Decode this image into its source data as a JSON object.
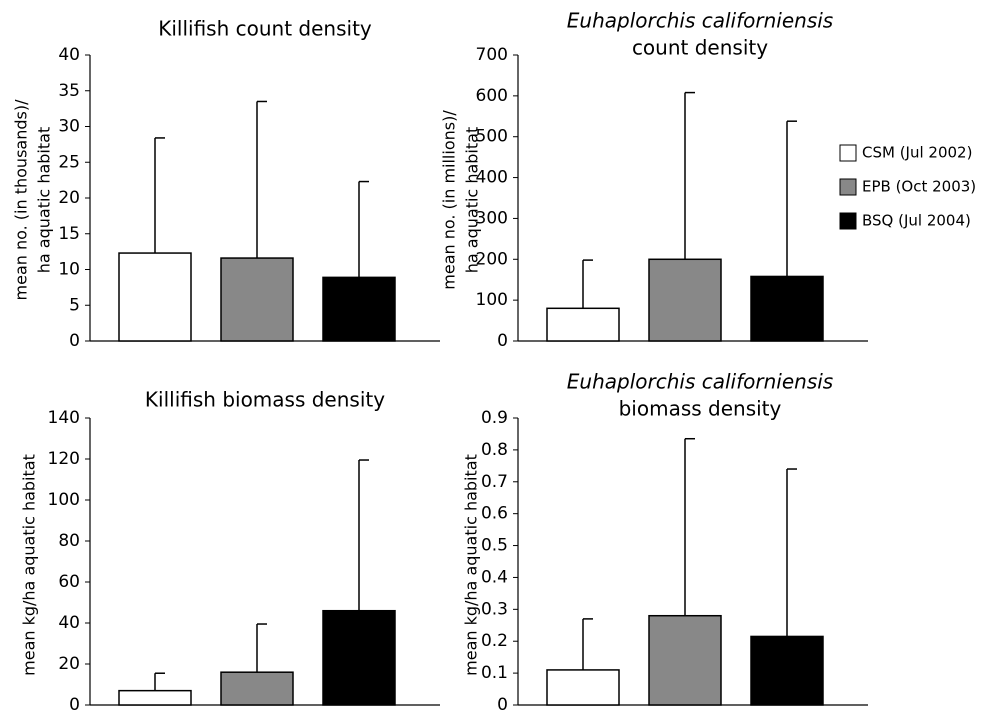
{
  "legend": [
    {
      "name": "CSM (Jul 2002)",
      "color": "#ffffff"
    },
    {
      "name": "EPB (Oct 2003)",
      "color": "#888888"
    },
    {
      "name": "BSQ (Jul 2004)",
      "color": "#000000"
    }
  ],
  "chart_data": [
    {
      "type": "bar",
      "title": [
        "Killifish count density"
      ],
      "ylabel": [
        "mean no. (in thousands)/",
        "ha aquatic habitat"
      ],
      "values": [
        12.3,
        11.6,
        8.9
      ],
      "errors": [
        16.1,
        21.9,
        13.4
      ],
      "ylim": [
        0,
        40
      ],
      "yticks": [
        0,
        5,
        10,
        15,
        20,
        25,
        30,
        35,
        40
      ]
    },
    {
      "type": "bar",
      "title": [
        "Euhaplorchis californiensis",
        "count density"
      ],
      "italic_line": 0,
      "ylabel": [
        "mean no. (in millions)/",
        "ha aquatic habitat"
      ],
      "values": [
        80,
        200,
        158
      ],
      "errors": [
        118,
        408,
        380
      ],
      "ylim": [
        0,
        700
      ],
      "yticks": [
        0,
        100,
        200,
        300,
        400,
        500,
        600,
        700
      ]
    },
    {
      "type": "bar",
      "title": [
        "Killifish biomass density"
      ],
      "ylabel": [
        "mean kg/ha aquatic habitat"
      ],
      "values": [
        7,
        16,
        46
      ],
      "errors": [
        8.5,
        23.5,
        73.5
      ],
      "ylim": [
        0,
        140
      ],
      "yticks": [
        0,
        20,
        40,
        60,
        80,
        100,
        120,
        140
      ]
    },
    {
      "type": "bar",
      "title": [
        "Euhaplorchis californiensis",
        "biomass density"
      ],
      "italic_line": 0,
      "ylabel": [
        "mean kg/ha aquatic habitat"
      ],
      "values": [
        0.11,
        0.28,
        0.215
      ],
      "errors": [
        0.16,
        0.555,
        0.525
      ],
      "ylim": [
        0,
        0.9
      ],
      "yticks": [
        0,
        0.1,
        0.2,
        0.3,
        0.4,
        0.5,
        0.6,
        0.7,
        0.8,
        0.9
      ]
    }
  ]
}
